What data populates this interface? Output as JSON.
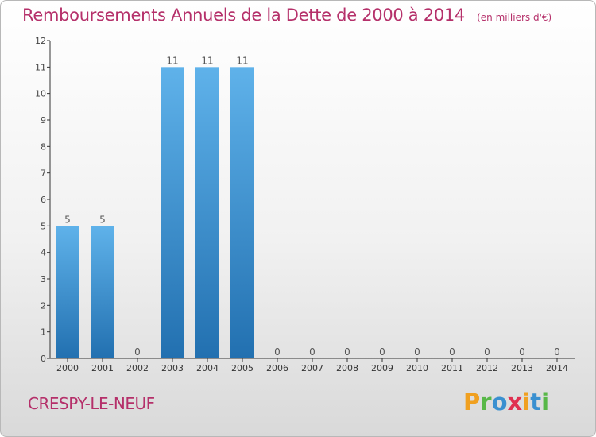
{
  "header": {
    "title": "Remboursements Annuels de la Dette de 2000 à 2014",
    "unit": "(en milliers d'€)"
  },
  "footer": {
    "commune": "CRESPY-LE-NEUF",
    "logo": "Proxiti"
  },
  "colors": {
    "title": "#b5306a",
    "bar_top": "#5fb2ea",
    "bar_bottom": "#2270b0",
    "axis": "#333333"
  },
  "chart_data": {
    "type": "bar",
    "categories": [
      "2000",
      "2001",
      "2002",
      "2003",
      "2004",
      "2005",
      "2006",
      "2007",
      "2008",
      "2009",
      "2010",
      "2011",
      "2012",
      "2013",
      "2014"
    ],
    "values": [
      5,
      5,
      0,
      11,
      11,
      11,
      0,
      0,
      0,
      0,
      0,
      0,
      0,
      0,
      0
    ],
    "title": "Remboursements Annuels de la Dette de 2000 à 2014",
    "xlabel": "",
    "ylabel": "",
    "ylim": [
      0,
      12
    ],
    "yticks": [
      0,
      1,
      2,
      3,
      4,
      5,
      6,
      7,
      8,
      9,
      10,
      11,
      12
    ],
    "grid": false,
    "legend": "none"
  }
}
